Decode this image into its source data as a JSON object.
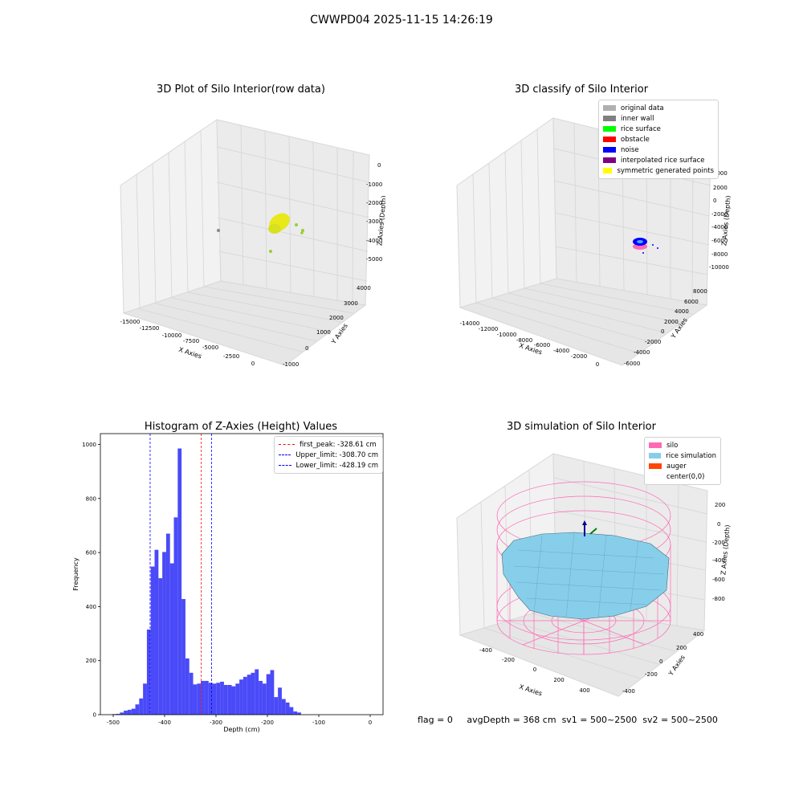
{
  "suptitle": "CWWPD04 2025-11-15 14:26:19",
  "panel1": {
    "title": "3D Plot of Silo Interior(row data)",
    "xlabel": "X Axies",
    "ylabel": "Y Axies",
    "zlabel": "Z Axies (Depth)",
    "xticks": [
      "-15000",
      "-12500",
      "-10000",
      "-7500",
      "-5000",
      "-2500",
      "0"
    ],
    "yticks": [
      "-1000",
      "0",
      "1000",
      "2000",
      "3000",
      "4000"
    ],
    "zticks": [
      "0",
      "-1000",
      "-2000",
      "-3000",
      "-4000",
      "-5000"
    ],
    "colors": {
      "points": "#e8e81a",
      "outlier": "#9acd32",
      "wall": "#888888"
    }
  },
  "panel2": {
    "title": "3D classify of Silo Interior",
    "xlabel": "X Axies",
    "ylabel": "Y Axies",
    "zlabel": "Z Axies (Depth)",
    "xticks": [
      "-14000",
      "-12000",
      "-10000",
      "-8000",
      "-6000",
      "-4000",
      "-2000",
      "0"
    ],
    "yticks": [
      "-6000",
      "-4000",
      "-2000",
      "0",
      "2000",
      "4000",
      "6000",
      "8000"
    ],
    "zticks": [
      "4000",
      "2000",
      "0",
      "-2000",
      "-4000",
      "-6000",
      "-8000",
      "-10000"
    ],
    "legend": [
      {
        "label": "original data",
        "color": "#b0b0b0"
      },
      {
        "label": "inner wall",
        "color": "#808080"
      },
      {
        "label": "rice surface",
        "color": "#00ff00"
      },
      {
        "label": "obstacle",
        "color": "#ff0000"
      },
      {
        "label": "noise",
        "color": "#0000ff"
      },
      {
        "label": "interpolated rice surface",
        "color": "#800080"
      },
      {
        "label": "symmetric generated points",
        "color": "#ffff00"
      }
    ]
  },
  "panel3": {
    "title": "Histogram of Z-Axies (Height) Values",
    "xlabel": "Depth (cm)",
    "ylabel": "Frequency",
    "legend": [
      {
        "label": "first_peak: -328.61 cm",
        "color": "#ff0000"
      },
      {
        "label": "Upper_limit: -308.70 cm",
        "color": "#0000ff"
      },
      {
        "label": "Lower_limit: -428.19 cm",
        "color": "#0000ff"
      }
    ]
  },
  "panel4": {
    "title": "3D simulation of Silo Interior",
    "xlabel": "X Axies",
    "ylabel": "Y Axies",
    "zlabel": "Z Axies (Depth)",
    "xticks": [
      "-400",
      "-200",
      "0",
      "200",
      "400"
    ],
    "yticks": [
      "-400",
      "-200",
      "0",
      "200",
      "400"
    ],
    "zticks": [
      "200",
      "0",
      "-200",
      "-400",
      "-600",
      "-800"
    ],
    "legend": [
      {
        "label": "silo",
        "color": "#ff69b4"
      },
      {
        "label": "rice simulation",
        "color": "#87ceeb"
      },
      {
        "label": "auger",
        "color": "#ff4500"
      },
      {
        "label": "center(0,0)",
        "color": ""
      }
    ]
  },
  "footer": {
    "flag": "flag = 0",
    "avg": "avgDepth = 368 cm",
    "sv1": "sv1 = 500~2500",
    "sv2": "sv2 = 500~2500"
  },
  "chart_data": [
    {
      "type": "histogram",
      "title": "Histogram of Z-Axies (Height) Values",
      "xlabel": "Depth (cm)",
      "ylabel": "Frequency",
      "xlim": [
        -525,
        25
      ],
      "ylim": [
        0,
        1040
      ],
      "xticks": [
        -500,
        -400,
        -300,
        -200,
        -100,
        0
      ],
      "yticks": [
        0,
        200,
        400,
        600,
        800,
        1000
      ],
      "bin_start": -502,
      "bin_width": 7.5,
      "counts": [
        2,
        3,
        8,
        15,
        18,
        22,
        38,
        60,
        115,
        315,
        548,
        610,
        505,
        602,
        670,
        560,
        730,
        985,
        428,
        208,
        155,
        112,
        115,
        125,
        125,
        118,
        115,
        118,
        122,
        110,
        110,
        105,
        115,
        130,
        140,
        148,
        155,
        168,
        125,
        115,
        150,
        165,
        65,
        100,
        58,
        45,
        28,
        12,
        8
      ],
      "lines": [
        {
          "label": "first_peak: -328.61 cm",
          "x": -328.61,
          "color": "#ff0000"
        },
        {
          "label": "Upper_limit: -308.70 cm",
          "x": -308.7,
          "color": "#0000ff"
        },
        {
          "label": "Lower_limit: -428.19 cm",
          "x": -428.19,
          "color": "#0000ff"
        }
      ],
      "bar_color": "#4a4af8",
      "legend_position": "top-right"
    },
    {
      "type": "scatter",
      "title": "3D Plot of Silo Interior(row data)",
      "projection": "3d",
      "xlim": [
        -15500,
        500
      ],
      "ylim": [
        -1000,
        4500
      ],
      "zlim": [
        -5500,
        300
      ]
    },
    {
      "type": "scatter",
      "title": "3D classify of Silo Interior",
      "projection": "3d",
      "xlim": [
        -15000,
        500
      ],
      "ylim": [
        -6500,
        9500
      ],
      "zlim": [
        -10500,
        4500
      ]
    },
    {
      "type": "surface",
      "title": "3D simulation of Silo Interior",
      "projection": "3d",
      "xlim": [
        -500,
        500
      ],
      "ylim": [
        -500,
        500
      ],
      "zlim": [
        -900,
        250
      ]
    }
  ]
}
